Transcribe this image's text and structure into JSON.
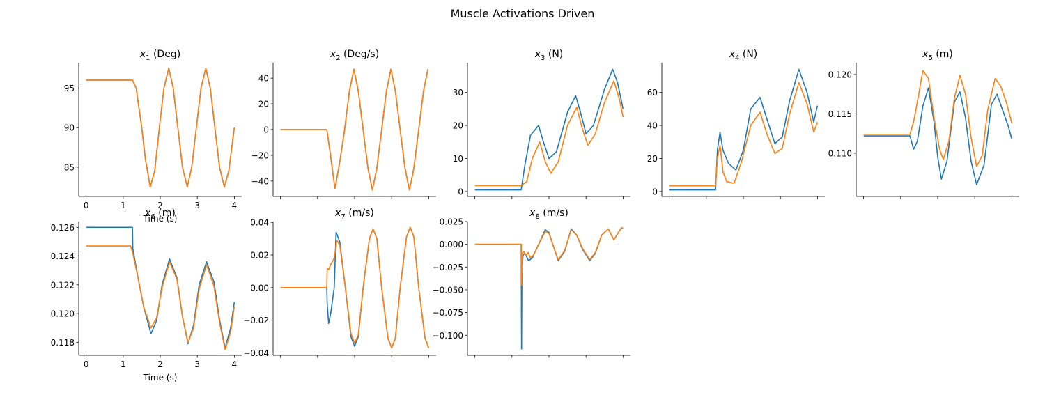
{
  "figure": {
    "title": "Muscle Activations Driven"
  },
  "colors": {
    "series_a": "#1f77b4",
    "series_b": "#ff7f0e"
  },
  "chart_data": [
    {
      "type": "line",
      "title_symbol": "x",
      "title_sub": "1",
      "title_unit": " (Deg)",
      "xlabel": "Time (s)",
      "xlim": [
        -0.2,
        4.2
      ],
      "xticks": [
        0,
        1,
        2,
        3,
        4
      ],
      "xtick_labels": [
        "0",
        "1",
        "2",
        "3",
        "4"
      ],
      "ylim": [
        81.3,
        98.2
      ],
      "yticks": [
        85,
        90,
        95
      ],
      "ytick_labels": [
        "85",
        "90",
        "95"
      ],
      "legend": "none",
      "grid": false,
      "series": [
        {
          "color_key": "series_a",
          "x": [
            0,
            1.0,
            1.25,
            1.35,
            1.5,
            1.6,
            1.73,
            1.85,
            2.0,
            2.1,
            2.23,
            2.35,
            2.5,
            2.6,
            2.73,
            2.85,
            3.0,
            3.1,
            3.23,
            3.35,
            3.5,
            3.6,
            3.73,
            3.85,
            4.0
          ],
          "y": [
            96.0,
            96.0,
            96.0,
            95.0,
            90.0,
            86.0,
            82.5,
            84.5,
            91.0,
            95.0,
            97.5,
            95.0,
            89.0,
            85.0,
            82.5,
            85.0,
            91.0,
            95.0,
            97.5,
            95.0,
            89.0,
            85.0,
            82.5,
            84.5,
            90.0
          ]
        },
        {
          "color_key": "series_b",
          "x": [
            0,
            1.0,
            1.25,
            1.35,
            1.5,
            1.6,
            1.73,
            1.85,
            2.0,
            2.1,
            2.23,
            2.35,
            2.5,
            2.6,
            2.73,
            2.85,
            3.0,
            3.1,
            3.23,
            3.35,
            3.5,
            3.6,
            3.73,
            3.85,
            4.0
          ],
          "y": [
            96.0,
            96.0,
            96.0,
            95.0,
            90.0,
            86.0,
            82.5,
            84.5,
            91.0,
            95.0,
            97.5,
            95.0,
            89.0,
            85.0,
            82.5,
            85.0,
            91.0,
            95.0,
            97.5,
            95.0,
            89.0,
            85.0,
            82.5,
            84.5,
            90.0
          ]
        }
      ]
    },
    {
      "type": "line",
      "title_symbol": "x",
      "title_sub": "2",
      "title_unit": " (Deg/s)",
      "xlabel": "",
      "xlim": [
        -0.2,
        4.2
      ],
      "xticks": [
        0,
        1,
        2,
        3,
        4
      ],
      "xtick_labels": [],
      "ylim": [
        -52,
        52
      ],
      "yticks": [
        -40,
        -20,
        0,
        20,
        40
      ],
      "ytick_labels": [
        "−40",
        "−20",
        "0",
        "20",
        "40"
      ],
      "legend": "none",
      "grid": false,
      "series": [
        {
          "color_key": "series_a",
          "x": [
            0,
            1.0,
            1.25,
            1.35,
            1.47,
            1.6,
            1.73,
            1.86,
            1.98,
            2.1,
            2.23,
            2.36,
            2.48,
            2.6,
            2.73,
            2.86,
            2.98,
            3.1,
            3.23,
            3.36,
            3.48,
            3.6,
            3.73,
            3.86,
            3.98
          ],
          "y": [
            0,
            0,
            0,
            -20,
            -46,
            -25,
            0,
            30,
            47,
            30,
            0,
            -30,
            -47,
            -30,
            0,
            30,
            47,
            30,
            0,
            -30,
            -47,
            -30,
            0,
            30,
            47
          ]
        },
        {
          "color_key": "series_b",
          "x": [
            0,
            1.0,
            1.25,
            1.35,
            1.47,
            1.6,
            1.73,
            1.86,
            1.98,
            2.1,
            2.23,
            2.36,
            2.48,
            2.6,
            2.73,
            2.86,
            2.98,
            3.1,
            3.23,
            3.36,
            3.48,
            3.6,
            3.73,
            3.86,
            3.98
          ],
          "y": [
            0,
            0,
            0,
            -20,
            -46,
            -25,
            0,
            30,
            47,
            30,
            0,
            -30,
            -47,
            -30,
            0,
            30,
            47,
            30,
            0,
            -30,
            -47,
            -30,
            0,
            30,
            47
          ]
        }
      ]
    },
    {
      "type": "line",
      "title_symbol": "x",
      "title_sub": "3",
      "title_unit": " (N)",
      "xlabel": "",
      "xlim": [
        -0.2,
        4.2
      ],
      "xticks": [
        0,
        1,
        2,
        3,
        4
      ],
      "xtick_labels": [],
      "ylim": [
        -1.5,
        39
      ],
      "yticks": [
        0,
        10,
        20,
        30
      ],
      "ytick_labels": [
        "0",
        "10",
        "20",
        "30"
      ],
      "legend": "none",
      "grid": false,
      "series": [
        {
          "color_key": "series_a",
          "x": [
            0,
            1.0,
            1.25,
            1.35,
            1.5,
            1.72,
            1.85,
            2.0,
            2.2,
            2.5,
            2.72,
            2.85,
            3.0,
            3.2,
            3.5,
            3.72,
            3.85,
            4.0
          ],
          "y": [
            0.5,
            0.5,
            0.5,
            8.0,
            17.0,
            20.0,
            15.0,
            10.0,
            12.0,
            24.0,
            29.0,
            24.0,
            17.5,
            20.0,
            31.0,
            37.0,
            33.0,
            25.0
          ]
        },
        {
          "color_key": "series_b",
          "x": [
            0,
            1.0,
            1.25,
            1.4,
            1.55,
            1.75,
            1.9,
            2.05,
            2.25,
            2.5,
            2.75,
            2.9,
            3.05,
            3.25,
            3.5,
            3.75,
            3.9,
            4.0
          ],
          "y": [
            1.8,
            1.8,
            1.8,
            3.0,
            10.0,
            15.0,
            9.0,
            5.5,
            9.0,
            20.0,
            25.5,
            19.0,
            14.0,
            17.5,
            27.0,
            33.5,
            28.0,
            22.5
          ]
        }
      ]
    },
    {
      "type": "line",
      "title_symbol": "x",
      "title_sub": "4",
      "title_unit": " (N)",
      "xlabel": "",
      "xlim": [
        -0.2,
        4.2
      ],
      "xticks": [
        0,
        1,
        2,
        3,
        4
      ],
      "xtick_labels": [],
      "ylim": [
        -3,
        78
      ],
      "yticks": [
        0,
        20,
        40,
        60
      ],
      "ytick_labels": [
        "0",
        "20",
        "40",
        "60"
      ],
      "legend": "none",
      "grid": false,
      "series": [
        {
          "color_key": "series_a",
          "x": [
            0,
            1.0,
            1.25,
            1.3,
            1.37,
            1.45,
            1.6,
            1.8,
            2.0,
            2.2,
            2.45,
            2.65,
            2.85,
            3.05,
            3.25,
            3.5,
            3.72,
            3.9,
            4.0
          ],
          "y": [
            1.0,
            1.0,
            1.0,
            25.0,
            36.0,
            25.0,
            17.0,
            13.0,
            25.0,
            50.0,
            57.0,
            43.0,
            29.0,
            33.0,
            55.0,
            74.0,
            60.0,
            42.0,
            52.0
          ]
        },
        {
          "color_key": "series_b",
          "x": [
            0,
            1.0,
            1.25,
            1.3,
            1.37,
            1.45,
            1.55,
            1.75,
            1.95,
            2.2,
            2.45,
            2.65,
            2.85,
            3.05,
            3.25,
            3.5,
            3.72,
            3.9,
            4.0
          ],
          "y": [
            3.5,
            3.5,
            3.5,
            20.0,
            28.0,
            12.0,
            6.0,
            5.0,
            18.0,
            40.0,
            48.0,
            34.0,
            23.0,
            26.0,
            47.0,
            66.0,
            53.0,
            36.0,
            42.0
          ]
        }
      ]
    },
    {
      "type": "line",
      "title_symbol": "x",
      "title_sub": "5",
      "title_unit": " (m)",
      "xlabel": "",
      "xlim": [
        -0.2,
        4.2
      ],
      "xticks": [
        0,
        1,
        2,
        3,
        4
      ],
      "xtick_labels": [],
      "ylim": [
        0.1045,
        0.1215
      ],
      "yticks": [
        0.11,
        0.115,
        0.12
      ],
      "ytick_labels": [
        "0.110",
        "0.115",
        "0.120"
      ],
      "legend": "none",
      "grid": false,
      "series": [
        {
          "color_key": "series_a",
          "x": [
            0,
            1.0,
            1.25,
            1.35,
            1.45,
            1.6,
            1.75,
            1.9,
            2.0,
            2.1,
            2.25,
            2.45,
            2.6,
            2.75,
            2.9,
            3.05,
            3.25,
            3.45,
            3.6,
            3.75,
            3.9,
            4.0
          ],
          "y": [
            0.1122,
            0.1122,
            0.1122,
            0.1105,
            0.1115,
            0.116,
            0.1183,
            0.114,
            0.1095,
            0.1067,
            0.109,
            0.1165,
            0.1178,
            0.1145,
            0.109,
            0.106,
            0.1085,
            0.1162,
            0.1175,
            0.1155,
            0.1135,
            0.1118
          ]
        },
        {
          "color_key": "series_b",
          "x": [
            0,
            1.0,
            1.25,
            1.35,
            1.45,
            1.6,
            1.75,
            1.9,
            2.05,
            2.15,
            2.3,
            2.45,
            2.6,
            2.75,
            2.9,
            3.05,
            3.2,
            3.35,
            3.55,
            3.7,
            3.85,
            4.0
          ],
          "y": [
            0.1124,
            0.1124,
            0.1124,
            0.114,
            0.1165,
            0.1205,
            0.1195,
            0.1145,
            0.1105,
            0.1092,
            0.1115,
            0.117,
            0.1199,
            0.1175,
            0.112,
            0.1083,
            0.1097,
            0.1155,
            0.1195,
            0.1185,
            0.1165,
            0.1138
          ]
        }
      ]
    },
    {
      "type": "line",
      "title_symbol": "x",
      "title_sub": "6",
      "title_unit": " (m)",
      "xlabel": "Time (s)",
      "xlim": [
        -0.2,
        4.2
      ],
      "xticks": [
        0,
        1,
        2,
        3,
        4
      ],
      "xtick_labels": [
        "0",
        "1",
        "2",
        "3",
        "4"
      ],
      "ylim": [
        0.1171,
        0.1264
      ],
      "yticks": [
        0.118,
        0.12,
        0.122,
        0.124,
        0.126
      ],
      "ytick_labels": [
        "0.118",
        "0.120",
        "0.122",
        "0.124",
        "0.126"
      ],
      "legend": "none",
      "grid": false,
      "series": [
        {
          "color_key": "series_a",
          "x": [
            0,
            1.25,
            1.26,
            1.4,
            1.55,
            1.75,
            1.9,
            2.05,
            2.25,
            2.45,
            2.6,
            2.75,
            2.9,
            3.05,
            3.25,
            3.45,
            3.6,
            3.75,
            3.9,
            4.0
          ],
          "y": [
            0.126,
            0.126,
            0.1245,
            0.1225,
            0.1205,
            0.1186,
            0.1195,
            0.122,
            0.1238,
            0.1225,
            0.1198,
            0.1179,
            0.1192,
            0.122,
            0.1236,
            0.1222,
            0.1196,
            0.1176,
            0.119,
            0.1208
          ]
        },
        {
          "color_key": "series_b",
          "x": [
            0,
            1.2,
            1.25,
            1.4,
            1.55,
            1.75,
            1.9,
            2.05,
            2.25,
            2.45,
            2.6,
            2.75,
            2.9,
            3.05,
            3.25,
            3.45,
            3.6,
            3.75,
            3.9,
            4.0
          ],
          "y": [
            0.1247,
            0.1247,
            0.1243,
            0.1225,
            0.1205,
            0.119,
            0.1197,
            0.1218,
            0.1236,
            0.1224,
            0.1198,
            0.118,
            0.119,
            0.1217,
            0.1234,
            0.1219,
            0.1194,
            0.1175,
            0.1187,
            0.1205
          ]
        }
      ]
    },
    {
      "type": "line",
      "title_symbol": "x",
      "title_sub": "7",
      "title_unit": " (m/s)",
      "xlabel": "",
      "xlim": [
        -0.2,
        4.2
      ],
      "xticks": [
        0,
        1,
        2,
        3,
        4
      ],
      "xtick_labels": [],
      "ylim": [
        -0.0415,
        0.0405
      ],
      "yticks": [
        -0.04,
        -0.02,
        0.0,
        0.02,
        0.04
      ],
      "ytick_labels": [
        "−0.04",
        "−0.02",
        "0.00",
        "0.02",
        "0.04"
      ],
      "legend": "none",
      "grid": false,
      "series": [
        {
          "color_key": "series_a",
          "x": [
            0,
            1.25,
            1.26,
            1.3,
            1.36,
            1.45,
            1.5,
            1.6,
            1.75,
            1.9,
            2.0,
            2.1,
            2.23,
            2.4,
            2.5,
            2.6,
            2.73,
            2.9,
            3.0,
            3.1,
            3.23,
            3.4,
            3.5,
            3.6,
            3.73,
            3.9,
            4.0
          ],
          "y": [
            0,
            0,
            -0.01,
            -0.022,
            -0.015,
            0.0,
            0.034,
            0.028,
            0.0,
            -0.03,
            -0.036,
            -0.03,
            0.0,
            0.03,
            0.036,
            0.03,
            0.0,
            -0.031,
            -0.037,
            -0.031,
            0.0,
            0.031,
            0.037,
            0.031,
            0.0,
            -0.031,
            -0.037
          ]
        },
        {
          "color_key": "series_b",
          "x": [
            0,
            1.25,
            1.26,
            1.3,
            1.35,
            1.45,
            1.52,
            1.6,
            1.75,
            1.9,
            2.0,
            2.1,
            2.23,
            2.4,
            2.5,
            2.6,
            2.73,
            2.9,
            3.0,
            3.1,
            3.23,
            3.4,
            3.5,
            3.6,
            3.73,
            3.9,
            4.0
          ],
          "y": [
            0,
            0,
            0.012,
            0.011,
            0.014,
            0.018,
            0.029,
            0.026,
            0.0,
            -0.028,
            -0.034,
            -0.029,
            0.0,
            0.03,
            0.036,
            0.03,
            0.0,
            -0.031,
            -0.037,
            -0.031,
            0.0,
            0.031,
            0.037,
            0.031,
            0.0,
            -0.031,
            -0.037
          ]
        }
      ]
    },
    {
      "type": "line",
      "title_symbol": "x",
      "title_sub": "8",
      "title_unit": " (m/s)",
      "xlabel": "",
      "xlim": [
        -0.2,
        4.2
      ],
      "xticks": [
        0,
        1,
        2,
        3,
        4
      ],
      "xtick_labels": [],
      "ylim": [
        -0.122,
        0.025
      ],
      "yticks": [
        -0.1,
        -0.075,
        -0.05,
        -0.025,
        0.0,
        0.025
      ],
      "ytick_labels": [
        "−0.100",
        "−0.075",
        "−0.050",
        "−0.025",
        "0.000",
        "0.025"
      ],
      "legend": "none",
      "grid": false,
      "series": [
        {
          "color_key": "series_a",
          "x": [
            0,
            1.25,
            1.26,
            1.27,
            1.3,
            1.35,
            1.45,
            1.55,
            1.72,
            1.9,
            2.0,
            2.1,
            2.25,
            2.42,
            2.6,
            2.75,
            2.9,
            3.1,
            3.25,
            3.42,
            3.6,
            3.75,
            3.95,
            4.0
          ],
          "y": [
            0,
            0,
            -0.115,
            -0.03,
            -0.012,
            -0.01,
            -0.018,
            -0.015,
            0.0,
            0.016,
            0.013,
            0.0,
            -0.018,
            -0.008,
            0.017,
            0.01,
            -0.005,
            -0.018,
            -0.01,
            0.01,
            0.017,
            0.005,
            0.018,
            0.018
          ]
        },
        {
          "color_key": "series_b",
          "x": [
            0,
            1.25,
            1.26,
            1.28,
            1.32,
            1.38,
            1.44,
            1.5,
            1.58,
            1.72,
            1.9,
            2.0,
            2.1,
            2.25,
            2.42,
            2.6,
            2.75,
            2.9,
            3.1,
            3.25,
            3.42,
            3.6,
            3.75,
            3.95,
            4.0
          ],
          "y": [
            0,
            0,
            -0.045,
            -0.01,
            -0.008,
            -0.012,
            -0.009,
            -0.015,
            -0.012,
            0.0,
            0.014,
            0.012,
            0.0,
            -0.017,
            -0.007,
            0.016,
            0.01,
            -0.004,
            -0.017,
            -0.009,
            0.01,
            0.017,
            0.005,
            0.018,
            0.018
          ]
        }
      ]
    }
  ]
}
